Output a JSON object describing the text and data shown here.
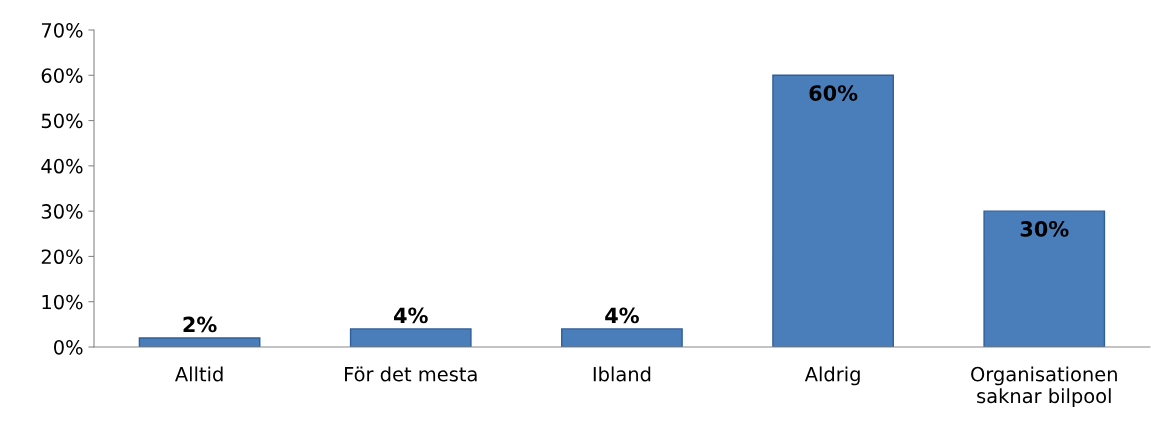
{
  "chart_data": {
    "type": "bar",
    "categories": [
      "Alltid",
      "För det mesta",
      "Ibland",
      "Aldrig",
      "Organisationen\nsaknar bilpool"
    ],
    "values": [
      2,
      4,
      4,
      60,
      30
    ],
    "value_labels": [
      "2%",
      "4%",
      "4%",
      "60%",
      "30%"
    ],
    "color": "#4a7ebb",
    "ylim": [
      0,
      70
    ],
    "yticks": [
      {
        "value": 0,
        "label": "0%"
      },
      {
        "value": 10,
        "label": "10%"
      },
      {
        "value": 20,
        "label": "20%"
      },
      {
        "value": 30,
        "label": "30%"
      },
      {
        "value": 40,
        "label": "40%"
      },
      {
        "value": 50,
        "label": "50%"
      },
      {
        "value": 60,
        "label": "60%"
      },
      {
        "value": 70,
        "label": "70%"
      }
    ],
    "grid": false,
    "legend": false
  }
}
